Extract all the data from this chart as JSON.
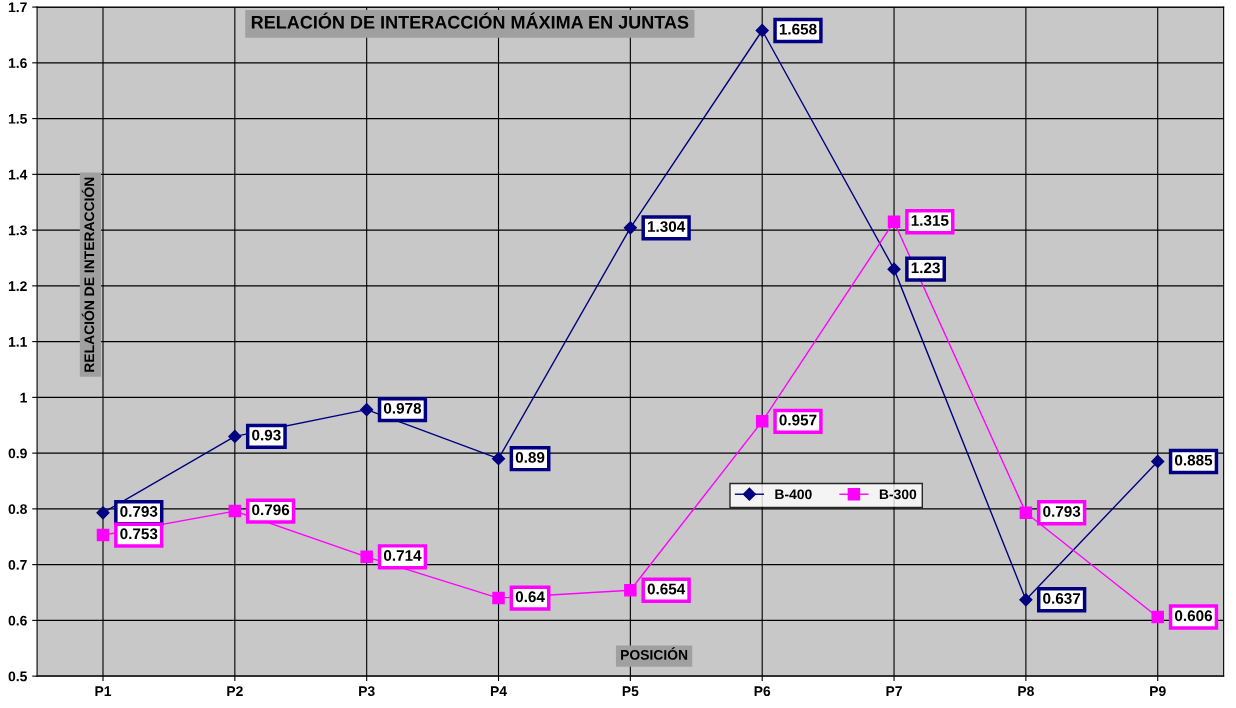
{
  "chart_data": {
    "type": "line",
    "title": "RELACIÓN DE INTERACCIÓN MÁXIMA EN JUNTAS",
    "xlabel": "POSICIÓN",
    "ylabel": "RELACIÓN DE INTERACCIÓN",
    "categories": [
      "P1",
      "P2",
      "P3",
      "P4",
      "P5",
      "P6",
      "P7",
      "P8",
      "P9"
    ],
    "series": [
      {
        "name": "B-400",
        "color": "#000080",
        "marker": "diamond",
        "values": [
          0.793,
          0.93,
          0.978,
          0.89,
          1.304,
          1.658,
          1.23,
          0.637,
          0.885
        ]
      },
      {
        "name": "B-300",
        "color": "#ff00ff",
        "marker": "square",
        "values": [
          0.753,
          0.796,
          0.714,
          0.64,
          0.654,
          0.957,
          1.315,
          0.793,
          0.606
        ]
      }
    ],
    "ylim": [
      0.5,
      1.7
    ],
    "yticks": [
      0.5,
      0.6,
      0.7,
      0.8,
      0.9,
      1,
      1.1,
      1.2,
      1.3,
      1.4,
      1.5,
      1.6,
      1.7
    ],
    "grid": true,
    "legend": "bottom right",
    "data_labels": true,
    "line_style": "solid"
  }
}
